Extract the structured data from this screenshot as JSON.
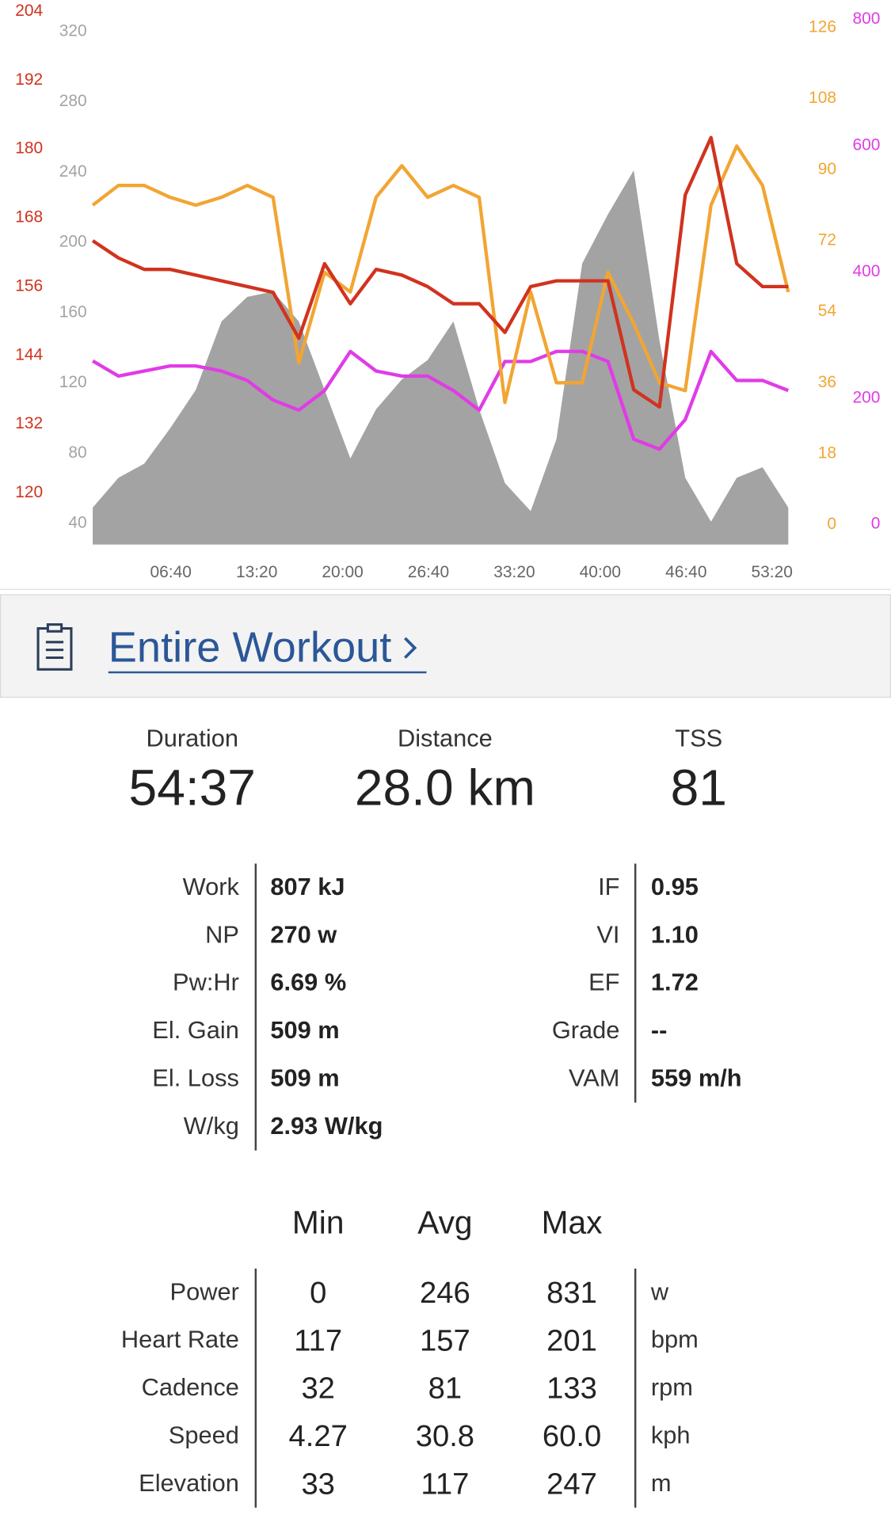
{
  "chart_data": {
    "type": "line",
    "x": [
      36,
      156,
      276,
      396,
      516,
      636,
      756,
      876,
      996,
      1116,
      1236,
      1356,
      1476,
      1596,
      1716,
      1836,
      1956,
      2076,
      2196,
      2316,
      2436,
      2556,
      2676,
      2796,
      2916,
      3036,
      3156,
      3276
    ],
    "xlim": [
      36,
      3318
    ],
    "xticks": [
      {
        "value": 400,
        "label": "06:40"
      },
      {
        "value": 800,
        "label": "13:20"
      },
      {
        "value": 1200,
        "label": "20:00"
      },
      {
        "value": 1600,
        "label": "26:40"
      },
      {
        "value": 2000,
        "label": "33:20"
      },
      {
        "value": 2400,
        "label": "40:00"
      },
      {
        "value": 2800,
        "label": "46:40"
      },
      {
        "value": 3200,
        "label": "53:20"
      }
    ],
    "ylim": [
      28,
      338
    ],
    "yticks": [
      40,
      80,
      120,
      160,
      200,
      240,
      280,
      320
    ],
    "y2lim": [
      111,
      206
    ],
    "y2ticks": [
      120,
      132,
      144,
      156,
      168,
      180,
      192,
      204
    ],
    "y3lim": [
      -5,
      133
    ],
    "y3ticks": [
      0,
      18,
      36,
      54,
      72,
      90,
      108,
      126
    ],
    "y4lim": [
      -32,
      831
    ],
    "y4ticks": [
      0,
      200,
      400,
      600,
      800
    ],
    "series": [
      {
        "style": "area",
        "axis": "y",
        "color": "#a3a3a3",
        "values": [
          49,
          66,
          74,
          94,
          116,
          155,
          169,
          172,
          155,
          116,
          77,
          105,
          122,
          133,
          155,
          105,
          63,
          47,
          88,
          188,
          216,
          241,
          144,
          66,
          41,
          66,
          72,
          49
        ]
      },
      {
        "style": "line",
        "axis": "y4",
        "color": "#e03ce6",
        "values": [
          259,
          235,
          243,
          251,
          251,
          243,
          228,
          197,
          181,
          212,
          274,
          243,
          235,
          235,
          212,
          181,
          258,
          258,
          274,
          274,
          258,
          135,
          119,
          166,
          274,
          228,
          228,
          212
        ]
      },
      {
        "style": "line",
        "axis": "y3",
        "color": "#f2a533",
        "values": [
          81,
          86,
          86,
          83,
          81,
          83,
          86,
          83,
          41,
          64,
          59,
          83,
          91,
          83,
          86,
          83,
          31,
          59,
          36,
          36,
          64,
          51,
          36,
          34,
          81,
          96,
          86,
          59
        ]
      },
      {
        "style": "line",
        "axis": "y2",
        "color": "#d0331f",
        "values": [
          164,
          161,
          159,
          159,
          158,
          157,
          156,
          155,
          147,
          160,
          153,
          159,
          158,
          156,
          153,
          153,
          148,
          156,
          157,
          157,
          157,
          138,
          135,
          172,
          182,
          160,
          156,
          156
        ]
      }
    ]
  },
  "link": {
    "text": "Entire Workout"
  },
  "summary": [
    {
      "label": "Duration",
      "value": "54:37"
    },
    {
      "label": "Distance",
      "value": "28.0 km"
    },
    {
      "label": "TSS",
      "value": "81"
    }
  ],
  "metrics": {
    "left": [
      {
        "label": "Work",
        "value": "807 kJ"
      },
      {
        "label": "NP",
        "value": "270 w"
      },
      {
        "label": "Pw:Hr",
        "value": "6.69 %"
      },
      {
        "label": "El. Gain",
        "value": "509 m"
      },
      {
        "label": "El. Loss",
        "value": "509 m"
      },
      {
        "label": "W/kg",
        "value": "2.93 W/kg"
      }
    ],
    "right": [
      {
        "label": "IF",
        "value": "0.95"
      },
      {
        "label": "VI",
        "value": "1.10"
      },
      {
        "label": "EF",
        "value": "1.72"
      },
      {
        "label": "Grade",
        "value": "--"
      },
      {
        "label": "VAM",
        "value": "559 m/h"
      }
    ]
  },
  "stats": {
    "columns": [
      "Min",
      "Avg",
      "Max"
    ],
    "rows": [
      {
        "label": "Power",
        "values": [
          "0",
          "246",
          "831"
        ],
        "unit": "w"
      },
      {
        "label": "Heart Rate",
        "values": [
          "117",
          "157",
          "201"
        ],
        "unit": "bpm"
      },
      {
        "label": "Cadence",
        "values": [
          "32",
          "81",
          "133"
        ],
        "unit": "rpm"
      },
      {
        "label": "Speed",
        "values": [
          "4.27",
          "30.8",
          "60.0"
        ],
        "unit": "kph"
      },
      {
        "label": "Elevation",
        "values": [
          "33",
          "117",
          "247"
        ],
        "unit": "m"
      }
    ]
  }
}
